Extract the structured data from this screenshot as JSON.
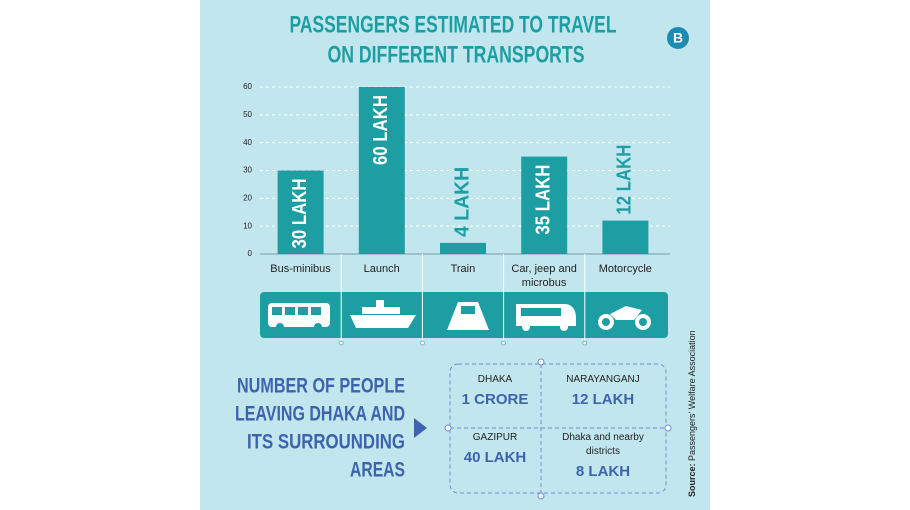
{
  "logo": "B",
  "chart_data": {
    "type": "bar",
    "title": [
      "PASSENGERS ESTIMATED TO TRAVEL",
      "ON DIFFERENT TRANSPORTS"
    ],
    "categories": [
      "Bus-minibus",
      "Launch",
      "Train",
      "Car, jeep and microbus",
      "Motorcycle"
    ],
    "values": [
      30,
      60,
      4,
      35,
      12
    ],
    "value_labels": [
      "30 LAKH",
      "60 LAKH",
      "4 LAKH",
      "35 LAKH",
      "12 LAKH"
    ],
    "color": "#1d9ea3",
    "ylim": [
      0,
      60
    ],
    "yticks": [
      0,
      10,
      20,
      30,
      40,
      50,
      60
    ],
    "grid": true,
    "source_label": "Source:",
    "source": "Passengers' Welfare Association"
  },
  "leaving_dhaka": {
    "title": [
      "NUMBER OF PEOPLE",
      "LEAVING DHAKA AND",
      "ITS SURROUNDING",
      "AREAS"
    ],
    "regions": [
      {
        "name": "DHAKA",
        "count": "1 CRORE"
      },
      {
        "name": "NARAYANGANJ",
        "count": "12 LAKH"
      },
      {
        "name": "GAZIPUR",
        "count": "40 LAKH"
      },
      {
        "name": "Dhaka and nearby districts",
        "count": "8 LAKH"
      }
    ]
  }
}
